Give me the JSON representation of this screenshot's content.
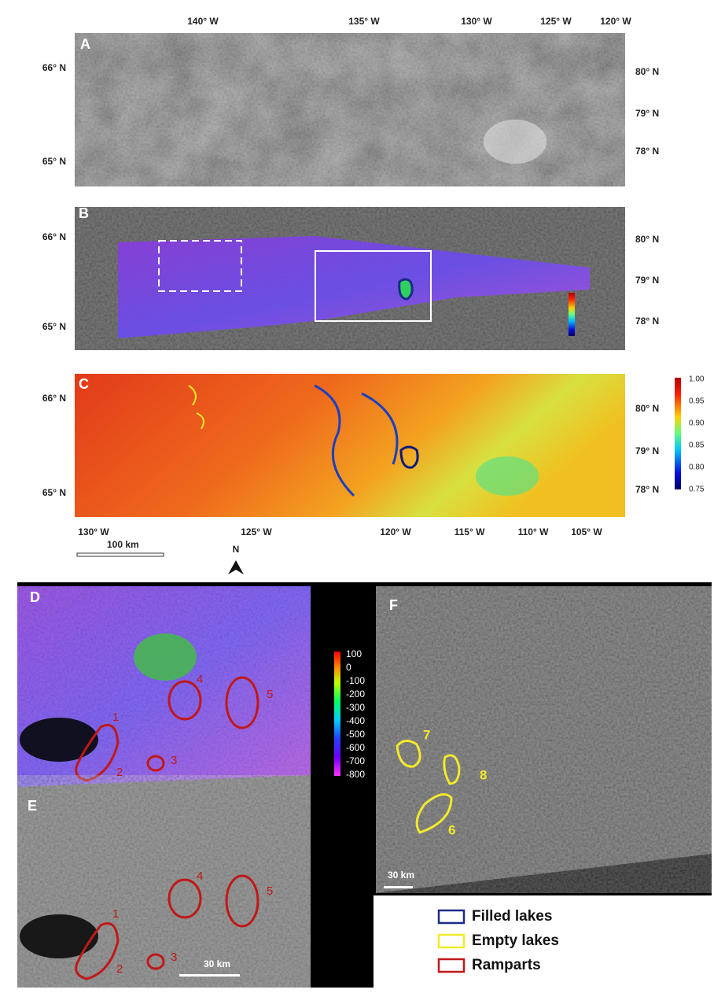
{
  "panels": {
    "a": {
      "label": "A",
      "left_lat": [
        "66° N",
        "65° N"
      ],
      "right_lat": [
        "80° N",
        "79° N",
        "78° N"
      ]
    },
    "b": {
      "label": "B",
      "left_lat": [
        "66° N",
        "65° N"
      ],
      "right_lat": [
        "80° N",
        "79° N",
        "78° N"
      ]
    },
    "c": {
      "label": "C",
      "left_lat": [
        "66° N",
        "65° N"
      ],
      "right_lat": [
        "80° N",
        "79° N",
        "78° N"
      ]
    },
    "d": {
      "label": "D",
      "features": [
        "1",
        "2",
        "3",
        "4",
        "5"
      ]
    },
    "e": {
      "label": "E",
      "features": [
        "1",
        "2",
        "3",
        "4",
        "5"
      ],
      "scale_bar": "30 km"
    },
    "f": {
      "label": "F",
      "features": [
        "7",
        "8",
        "6"
      ],
      "scale_bar": "30 km"
    }
  },
  "top_longitudes": [
    "140° W",
    "135° W",
    "130° W",
    "125° W",
    "120° W"
  ],
  "bottom_longitudes": [
    "130° W",
    "125° W",
    "120° W",
    "115° W",
    "110° W",
    "105° W"
  ],
  "colorbar_c": [
    "1.00",
    "0.95",
    "0.90",
    "0.85",
    "0.80",
    "0.75"
  ],
  "colorbar_d": [
    "100",
    "0",
    "-100",
    "-200",
    "-300",
    "-400",
    "-500",
    "-600",
    "-700",
    "-800"
  ],
  "scale_bar_top": "100 km",
  "north": "N",
  "legend": [
    {
      "label": "Filled lakes",
      "color": "#1a2a8c"
    },
    {
      "label": "Empty lakes",
      "color": "#f2ea2a"
    },
    {
      "label": "Ramparts",
      "color": "#c01818"
    }
  ]
}
